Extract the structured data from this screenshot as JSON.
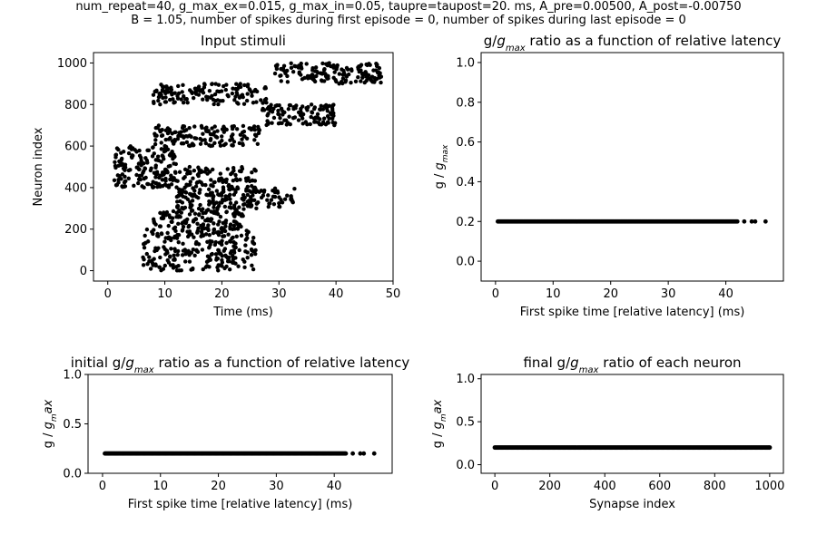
{
  "figure": {
    "title_line1": "num_repeat=40, g_max_ex=0.015, g_max_in=0.05, taupre=taupost=20. ms, A_pre=0.00500, A_post=-0.00750",
    "title_line2": "B = 1.05, number of spikes during first episode = 0, number of spikes during last episode = 0",
    "marker_color": "#000000",
    "background": "#ffffff"
  },
  "chart_data": [
    {
      "id": "raster",
      "type": "scatter",
      "title": "Input stimuli",
      "xlabel": "Time (ms)",
      "ylabel": "Neuron index",
      "xlim": [
        -2.5,
        50
      ],
      "ylim": [
        -50,
        1050
      ],
      "xticks": [
        0,
        10,
        20,
        30,
        40,
        50
      ],
      "yticks": [
        0,
        200,
        400,
        600,
        800,
        1000
      ],
      "grid": false,
      "point_groups": [
        {
          "x_range": [
            6,
            26
          ],
          "y_range": [
            0,
            200
          ],
          "count": 240
        },
        {
          "x_range": [
            8,
            24
          ],
          "y_range": [
            200,
            300
          ],
          "count": 130
        },
        {
          "x_range": [
            12,
            26
          ],
          "y_range": [
            300,
            400
          ],
          "count": 120
        },
        {
          "x_range": [
            24,
            33
          ],
          "y_range": [
            300,
            400
          ],
          "count": 50
        },
        {
          "x_range": [
            1,
            12
          ],
          "y_range": [
            400,
            600
          ],
          "count": 170
        },
        {
          "x_range": [
            12,
            26
          ],
          "y_range": [
            400,
            500
          ],
          "count": 90
        },
        {
          "x_range": [
            8,
            27
          ],
          "y_range": [
            600,
            700
          ],
          "count": 140
        },
        {
          "x_range": [
            8,
            28
          ],
          "y_range": [
            800,
            900
          ],
          "count": 140
        },
        {
          "x_range": [
            27,
            40
          ],
          "y_range": [
            700,
            800
          ],
          "count": 110
        },
        {
          "x_range": [
            29,
            48
          ],
          "y_range": [
            900,
            1000
          ],
          "count": 150
        }
      ]
    },
    {
      "id": "ratio_vs_latency",
      "type": "scatter",
      "title_pre": "g/",
      "title_var": "g",
      "title_sub": "max",
      "title_post": " ratio as a function of relative latency",
      "xlabel": "First spike time [relative latency] (ms)",
      "ylabel_pre": "g / ",
      "ylabel_var": "g",
      "ylabel_sub": "max",
      "xlim": [
        -2.5,
        50
      ],
      "ylim": [
        -0.1,
        1.05
      ],
      "xticks": [
        0,
        10,
        20,
        30,
        40
      ],
      "yticks": [
        "0.0",
        "0.2",
        "0.4",
        "0.6",
        "0.8",
        "1.0"
      ],
      "grid": false,
      "y_value": 0.2,
      "dense_x_range": [
        0.4,
        42
      ],
      "sparse_x": [
        43.2,
        44.5,
        45.1,
        46.9
      ],
      "n_points": 300
    },
    {
      "id": "initial_ratio",
      "type": "scatter",
      "title_pre": "initial g/",
      "title_var": "g",
      "title_sub": "max",
      "title_post": " ratio as a function of relative latency",
      "xlabel": "First spike time [relative latency] (ms)",
      "ylabel_pre": "g / ",
      "ylabel_var": "g",
      "ylabel_sub": "m",
      "ylabel_suffix": "ax",
      "xlim": [
        -2.5,
        50
      ],
      "ylim": [
        0,
        1
      ],
      "xticks": [
        0,
        10,
        20,
        30,
        40
      ],
      "yticks": [
        "0.0",
        "0.5",
        "1.0"
      ],
      "grid": false,
      "y_value": 0.2,
      "dense_x_range": [
        0.4,
        42
      ],
      "sparse_x": [
        43.2,
        44.5,
        45.1,
        46.9
      ],
      "n_points": 300
    },
    {
      "id": "final_ratio",
      "type": "scatter",
      "title_pre": "final g/",
      "title_var": "g",
      "title_sub": "max",
      "title_post": " ratio of each neuron",
      "xlabel": "Synapse index",
      "ylabel_pre": "g / ",
      "ylabel_var": "g",
      "ylabel_sub": "m",
      "ylabel_suffix": "ax",
      "xlim": [
        -50,
        1050
      ],
      "ylim": [
        -0.1,
        1.05
      ],
      "xticks": [
        0,
        200,
        400,
        600,
        800,
        1000
      ],
      "yticks": [
        "0.0",
        "0.5",
        "1.0"
      ],
      "grid": false,
      "y_value": 0.2,
      "x_start": 0,
      "x_end": 1000,
      "n_points": 1000
    }
  ]
}
